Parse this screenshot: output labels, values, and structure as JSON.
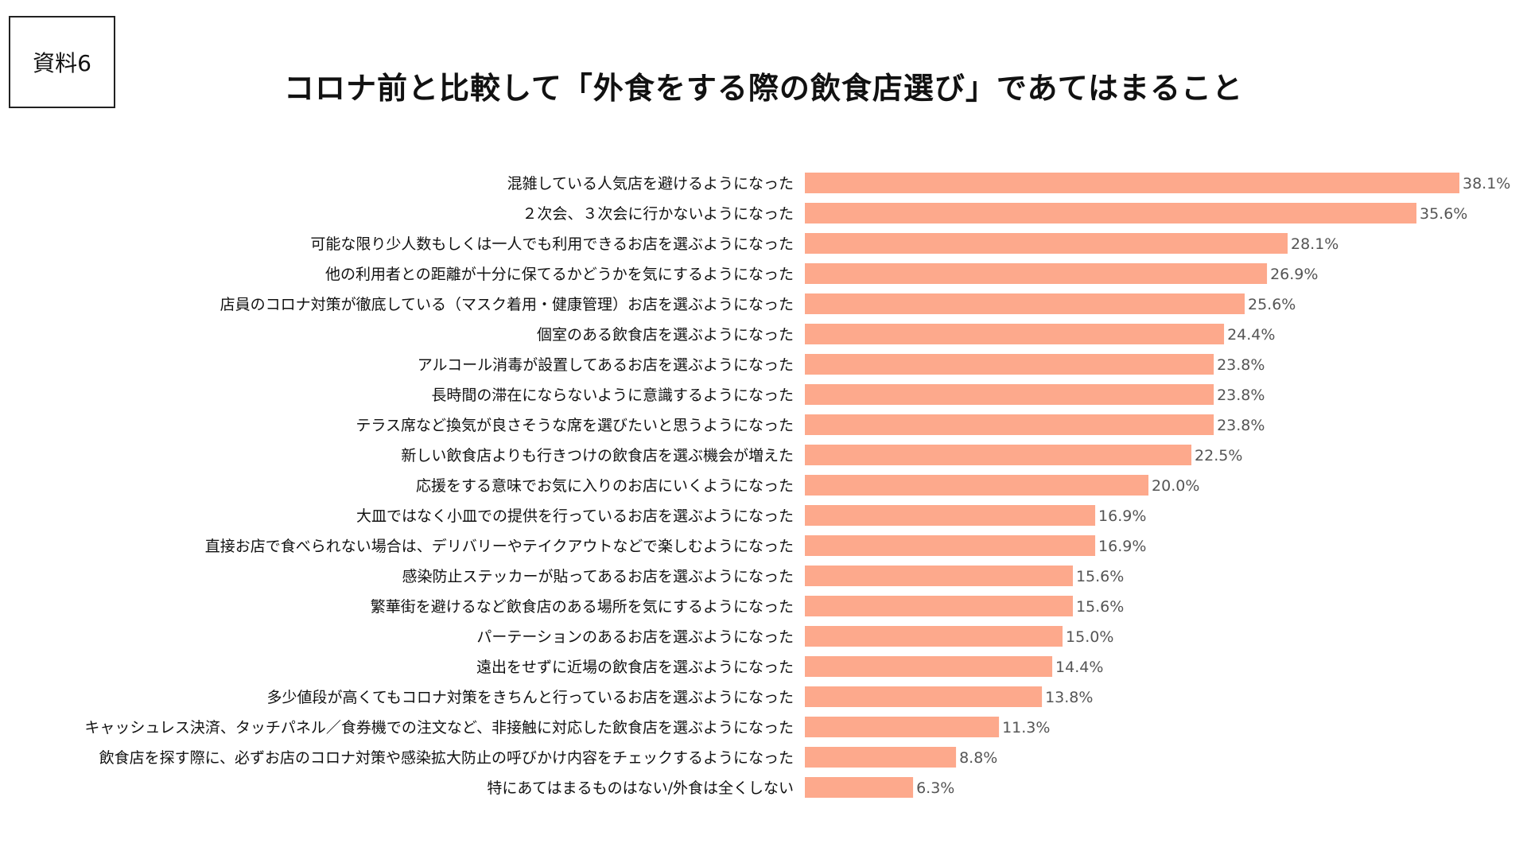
{
  "header": {
    "doc_label": "資料6",
    "title": "コロナ前と比較して「外食をする際の飲食店選び」であてはまること"
  },
  "colors": {
    "bar": "#FDA98C",
    "label_text": "#111111",
    "value_text": "#555555"
  },
  "chart_data": {
    "type": "bar",
    "orientation": "horizontal",
    "title": "コロナ前と比較して「外食をする際の飲食店選び」であてはまること",
    "xlabel": "",
    "ylabel": "",
    "unit": "%",
    "xlim": [
      0,
      38.1
    ],
    "grid": false,
    "legend": "none",
    "categories": [
      "混雑している人気店を避けるようになった",
      "２次会、３次会に行かないようになった",
      "可能な限り少人数もしくは一人でも利用できるお店を選ぶようになった",
      "他の利用者との距離が十分に保てるかどうかを気にするようになった",
      "店員のコロナ対策が徹底している（マスク着用・健康管理）お店を選ぶようになった",
      "個室のある飲食店を選ぶようになった",
      "アルコール消毒が設置してあるお店を選ぶようになった",
      "長時間の滞在にならないように意識するようになった",
      "テラス席など換気が良さそうな席を選びたいと思うようになった",
      "新しい飲食店よりも行きつけの飲食店を選ぶ機会が増えた",
      "応援をする意味でお気に入りのお店にいくようになった",
      "大皿ではなく小皿での提供を行っているお店を選ぶようになった",
      "直接お店で食べられない場合は、デリバリーやテイクアウトなどで楽しむようになった",
      "感染防止ステッカーが貼ってあるお店を選ぶようになった",
      "繁華街を避けるなど飲食店のある場所を気にするようになった",
      "パーテーションのあるお店を選ぶようになった",
      "遠出をせずに近場の飲食店を選ぶようになった",
      "多少値段が高くてもコロナ対策をきちんと行っているお店を選ぶようになった",
      "キャッシュレス決済、タッチパネル／食券機での注文など、非接触に対応した飲食店を選ぶようになった",
      "飲食店を探す際に、必ずお店のコロナ対策や感染拡大防止の呼びかけ内容をチェックするようになった",
      "特にあてはまるものはない/外食は全くしない"
    ],
    "values": [
      38.1,
      35.6,
      28.1,
      26.9,
      25.6,
      24.4,
      23.8,
      23.8,
      23.8,
      22.5,
      20.0,
      16.9,
      16.9,
      15.6,
      15.6,
      15.0,
      14.4,
      13.8,
      11.3,
      8.8,
      6.3
    ],
    "value_labels": [
      "38.1%",
      "35.6%",
      "28.1%",
      "26.9%",
      "25.6%",
      "24.4%",
      "23.8%",
      "23.8%",
      "23.8%",
      "22.5%",
      "20.0%",
      "16.9%",
      "16.9%",
      "15.6%",
      "15.6%",
      "15.0%",
      "14.4%",
      "13.8%",
      "11.3%",
      "8.8%",
      "6.3%"
    ]
  }
}
